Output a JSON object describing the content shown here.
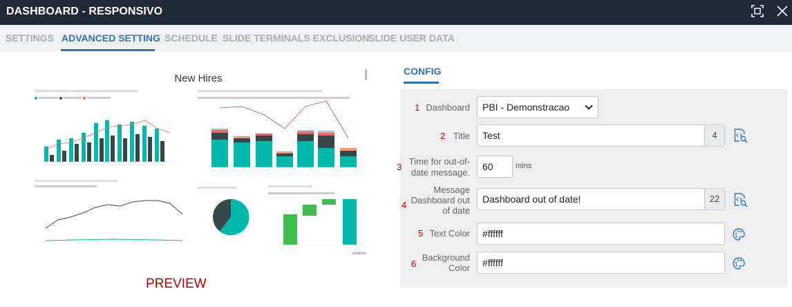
{
  "window": {
    "title": "DASHBOARD - RESPONSIVO",
    "maximize_icon": "maximize-icon",
    "close_icon": "close-icon"
  },
  "tabs": [
    {
      "label": "SETTINGS",
      "active": false
    },
    {
      "label": "ADVANCED SETTING",
      "active": true
    },
    {
      "label": "SCHEDULE",
      "active": false
    },
    {
      "label": "SLIDE TERMINALS EXCLUSION",
      "active": false
    },
    {
      "label": "SLIDE USER DATA",
      "active": false
    }
  ],
  "preview": {
    "report_title": "New Hires",
    "label": "PREVIEW",
    "watermark": "obviEnce"
  },
  "config": {
    "tab_label": "CONFIG",
    "dashboard": {
      "num": "1",
      "label": "Dashboard",
      "selected": "PBI - Demonstracao"
    },
    "title": {
      "num": "2",
      "label": "Title",
      "value": "Test",
      "count": "4"
    },
    "time": {
      "num": "3",
      "label_line1": "Time for out-of-",
      "label_line2": "date message.",
      "value": "60",
      "unit": "mins"
    },
    "message": {
      "num": "4",
      "label_line1": "Message",
      "label_line2": "Dashboard out",
      "label_line3": "of date",
      "value": "Dashboard out of date!",
      "count": "22"
    },
    "text_color": {
      "num": "5",
      "label": "Text Color",
      "value": "#ffffff"
    },
    "bg_color": {
      "num": "6",
      "label_line1": "Background",
      "label_line2": "Color",
      "value": "#ffffff"
    }
  },
  "colors": {
    "accent": "#2f75b5",
    "titlebar": "#1e2a38",
    "annotation": "#c00000",
    "teal": "#01b8aa",
    "dark": "#374649",
    "red": "#fd625e",
    "green": "#3dbb4c"
  }
}
